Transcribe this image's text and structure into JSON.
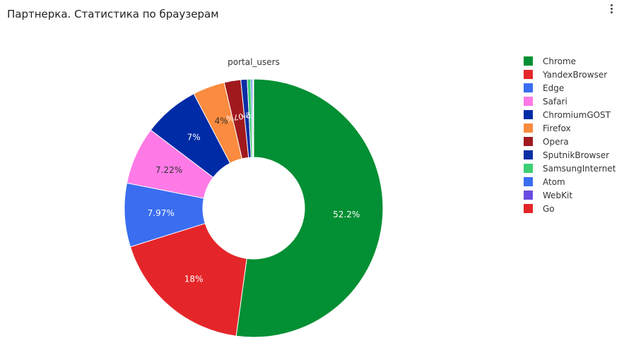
{
  "panel": {
    "title": "Партнерка. Статистика по браузерам",
    "menu_icon": "vertical-dots-icon"
  },
  "chart_data": {
    "type": "pie",
    "hole": true,
    "title": "portal_users",
    "legend_position": "right",
    "slices": [
      {
        "label": "Chrome",
        "value": 52.2,
        "text": "52.2%",
        "color": "#038f33",
        "text_color": "#ffffff"
      },
      {
        "label": "YandexBrowser",
        "value": 18.0,
        "text": "18%",
        "color": "#e4262a",
        "text_color": "#ffffff"
      },
      {
        "label": "Edge",
        "value": 7.97,
        "text": "7.97%",
        "color": "#3a6df0",
        "text_color": "#ffffff"
      },
      {
        "label": "Safari",
        "value": 7.22,
        "text": "7.22%",
        "color": "#ff7ae6",
        "text_color": "#333333"
      },
      {
        "label": "ChromiumGOST",
        "value": 7.0,
        "text": "7%",
        "color": "#002ba6",
        "text_color": "#ffffff"
      },
      {
        "label": "Firefox",
        "value": 4.0,
        "text": "4%",
        "color": "#fa8b3f",
        "text_color": "#333333"
      },
      {
        "label": "Opera",
        "value": 2.07,
        "text": "2.07%",
        "color": "#a0191d",
        "text_color": "#ffffff"
      },
      {
        "label": "SputnikBrowser",
        "value": 0.8,
        "text": "0.8%",
        "color": "#0b2ea3",
        "text_color": "#ffffff"
      },
      {
        "label": "SamsungInternet",
        "value": 0.45,
        "text": "",
        "color": "#3ccf73",
        "text_color": "#ffffff"
      },
      {
        "label": "Atom",
        "value": 0.2,
        "text": "",
        "color": "#3a6df0",
        "text_color": "#ffffff"
      },
      {
        "label": "WebKit",
        "value": 0.1,
        "text": "",
        "color": "#6b4ce0",
        "text_color": "#ffffff"
      },
      {
        "label": "Go",
        "value": 0.05,
        "text": "",
        "color": "#e4262a",
        "text_color": "#ffffff"
      }
    ]
  }
}
